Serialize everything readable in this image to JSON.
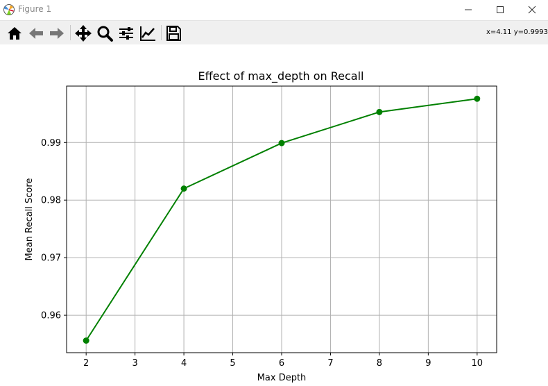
{
  "window": {
    "title": "Figure 1",
    "minimize_icon": "minimize-icon",
    "maximize_icon": "maximize-icon",
    "close_icon": "close-icon"
  },
  "toolbar": {
    "buttons": [
      {
        "name": "home-button",
        "icon": "home-icon",
        "tooltip": "Reset original view"
      },
      {
        "name": "back-button",
        "icon": "arrow-left-icon",
        "tooltip": "Back to previous view"
      },
      {
        "name": "forward-button",
        "icon": "arrow-right-icon",
        "tooltip": "Forward to next view"
      },
      {
        "name": "pan-button",
        "icon": "move-icon",
        "tooltip": "Pan axes"
      },
      {
        "name": "zoom-button",
        "icon": "magnifier-icon",
        "tooltip": "Zoom to rectangle"
      },
      {
        "name": "configure-subplots-button",
        "icon": "sliders-icon",
        "tooltip": "Configure subplots"
      },
      {
        "name": "edit-axis-button",
        "icon": "line-chart-icon",
        "tooltip": "Edit axis, curve and image parameters"
      },
      {
        "name": "save-button",
        "icon": "floppy-disk-icon",
        "tooltip": "Save the figure"
      }
    ],
    "coordinates": "x=4.11 y=0.9993"
  },
  "chart_data": {
    "type": "line",
    "title": "Effect of max_depth on Recall",
    "xlabel": "Max Depth",
    "ylabel": "Mean Recall Score",
    "x": [
      2,
      4,
      6,
      8,
      10
    ],
    "series": [
      {
        "values": [
          0.9556,
          0.982,
          0.9899,
          0.9953,
          0.9976
        ],
        "color": "#008000",
        "marker": "circle"
      }
    ],
    "xlim": [
      1.6,
      10.4
    ],
    "ylim": [
      0.9535,
      0.9998
    ],
    "xticks": [
      2,
      3,
      4,
      5,
      6,
      7,
      8,
      9,
      10
    ],
    "xtick_labels": [
      "2",
      "3",
      "4",
      "5",
      "6",
      "7",
      "8",
      "9",
      "10"
    ],
    "yticks": [
      0.96,
      0.97,
      0.98,
      0.99
    ],
    "ytick_labels": [
      "0.96",
      "0.97",
      "0.98",
      "0.99"
    ],
    "grid": true,
    "colors": {
      "line": "#008000",
      "grid": "#b0b0b0",
      "axes": "#000000"
    }
  }
}
